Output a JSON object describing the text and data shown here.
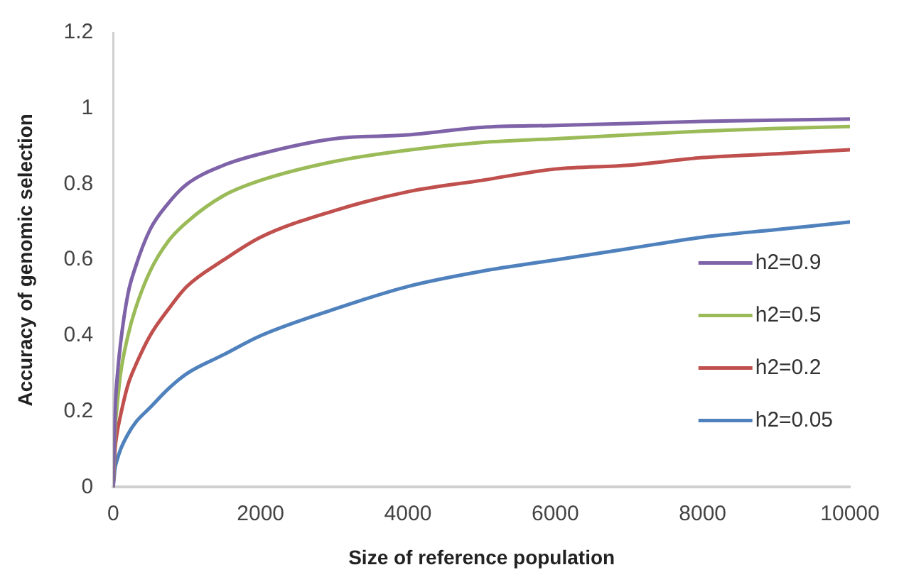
{
  "chart_data": {
    "type": "line",
    "xlabel": "Size of reference population",
    "ylabel": "Accuracy of genomic selection",
    "x": [
      0,
      25,
      50,
      100,
      200,
      300,
      500,
      750,
      1000,
      1500,
      2000,
      3000,
      4000,
      5000,
      6000,
      7000,
      8000,
      9000,
      10000
    ],
    "xlim": [
      0,
      10000
    ],
    "xticks": [
      0,
      2000,
      4000,
      6000,
      8000,
      10000
    ],
    "ylim": [
      0,
      1.2
    ],
    "yticks": [
      0,
      0.2,
      0.4,
      0.6,
      0.8,
      1,
      1.2
    ],
    "grid": false,
    "legend": "right",
    "marker": "none",
    "line_style": "solid",
    "series": [
      {
        "name": "h2=0.9",
        "color": "#7f63a8",
        "values": [
          0,
          0.2,
          0.28,
          0.38,
          0.51,
          0.58,
          0.68,
          0.75,
          0.8,
          0.85,
          0.88,
          0.92,
          0.93,
          0.95,
          0.955,
          0.96,
          0.966,
          0.969,
          0.972
        ]
      },
      {
        "name": "h2=0.5",
        "color": "#9bbb59",
        "values": [
          0,
          0.15,
          0.21,
          0.3,
          0.4,
          0.47,
          0.57,
          0.65,
          0.7,
          0.77,
          0.81,
          0.86,
          0.89,
          0.91,
          0.92,
          0.93,
          0.94,
          0.947,
          0.952
        ]
      },
      {
        "name": "h2=0.2",
        "color": "#c0504d",
        "values": [
          0,
          0.1,
          0.14,
          0.19,
          0.27,
          0.32,
          0.4,
          0.47,
          0.53,
          0.6,
          0.66,
          0.73,
          0.78,
          0.81,
          0.84,
          0.85,
          0.87,
          0.88,
          0.891
        ]
      },
      {
        "name": "h2=0.05",
        "color": "#4f81bd",
        "values": [
          0,
          0.05,
          0.07,
          0.1,
          0.14,
          0.17,
          0.21,
          0.26,
          0.3,
          0.35,
          0.4,
          0.47,
          0.53,
          0.57,
          0.6,
          0.63,
          0.66,
          0.68,
          0.7
        ]
      }
    ]
  }
}
